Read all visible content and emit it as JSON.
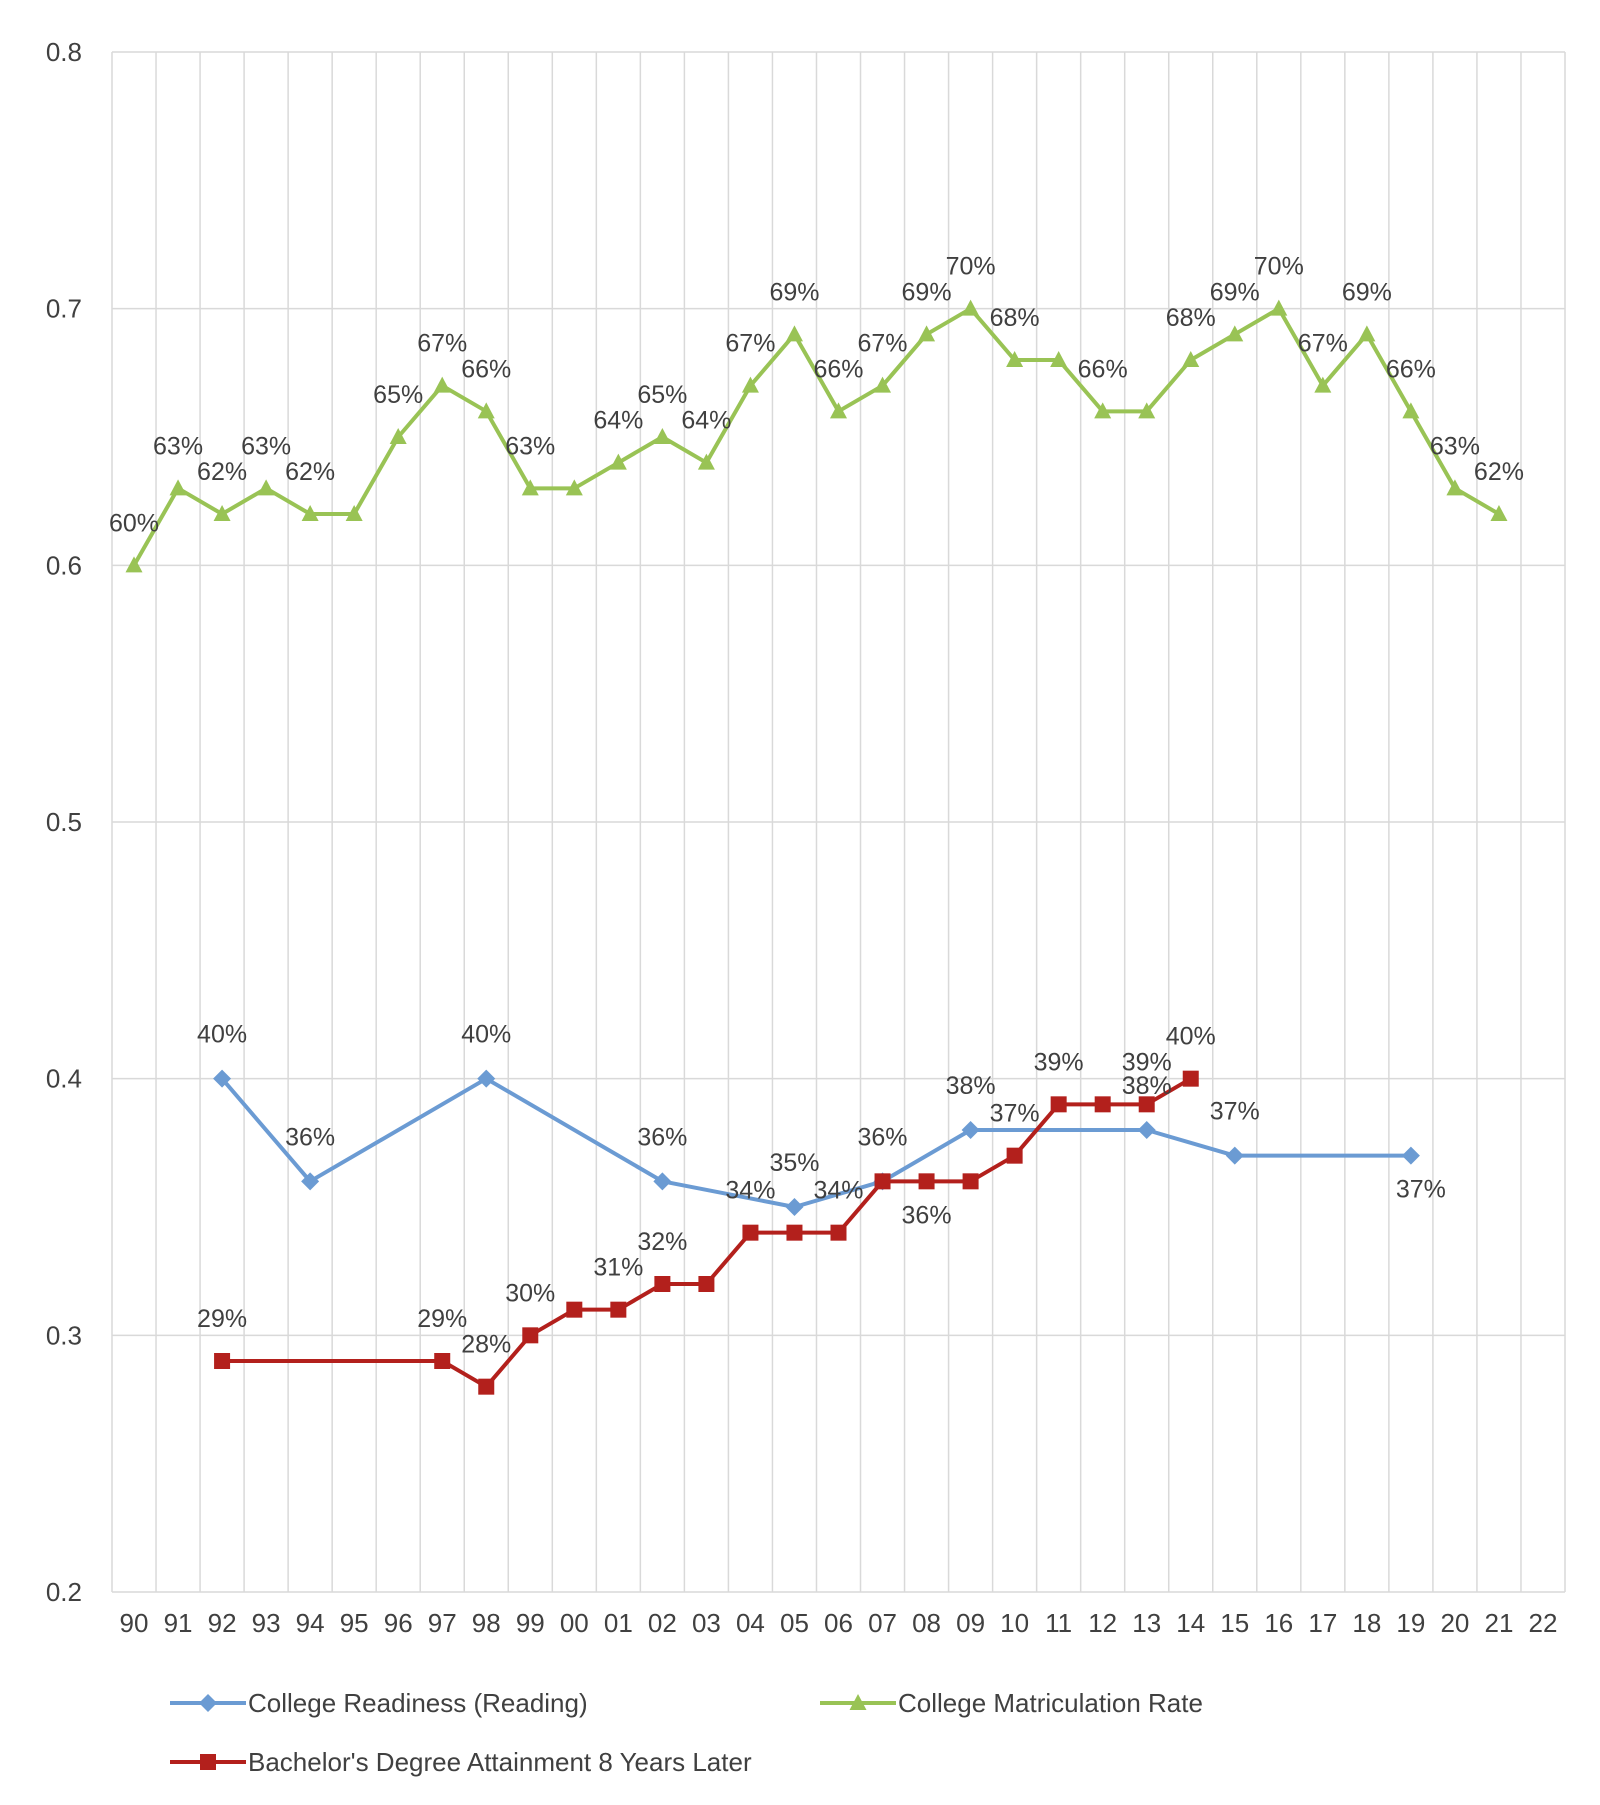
{
  "chart_data": {
    "type": "line",
    "title": "",
    "xlabel": "",
    "ylabel": "",
    "ylim": [
      0.2,
      0.8
    ],
    "yticks": [
      "0.2",
      "0.3",
      "0.4",
      "0.5",
      "0.6",
      "0.7",
      "0.8"
    ],
    "ytick_values": [
      0.2,
      0.3,
      0.4,
      0.5,
      0.6,
      0.7,
      0.8
    ],
    "categories": [
      "90",
      "91",
      "92",
      "93",
      "94",
      "95",
      "96",
      "97",
      "98",
      "99",
      "00",
      "01",
      "02",
      "03",
      "04",
      "05",
      "06",
      "07",
      "08",
      "09",
      "10",
      "11",
      "12",
      "13",
      "14",
      "15",
      "16",
      "17",
      "18",
      "19",
      "20",
      "21",
      "22"
    ],
    "grid": true,
    "legend_position": "bottom",
    "series": [
      {
        "name": "College Readiness (Reading)",
        "color": "#6b9bd3",
        "marker": "diamond",
        "values": [
          null,
          null,
          0.4,
          null,
          0.36,
          null,
          null,
          null,
          0.4,
          null,
          null,
          null,
          0.36,
          null,
          null,
          0.35,
          null,
          0.36,
          null,
          0.38,
          null,
          null,
          null,
          0.38,
          null,
          0.37,
          null,
          null,
          null,
          0.37,
          null,
          null,
          null
        ],
        "labels": [
          null,
          null,
          "40%",
          null,
          "36%",
          null,
          null,
          null,
          "40%",
          null,
          null,
          null,
          "36%",
          null,
          null,
          "35%",
          null,
          "36%",
          null,
          "38%",
          null,
          null,
          null,
          "38%",
          null,
          "37%",
          null,
          null,
          null,
          "37%",
          null,
          null,
          null
        ]
      },
      {
        "name": "College Matriculation Rate",
        "color": "#99c355",
        "marker": "triangle",
        "values": [
          0.6,
          0.63,
          0.62,
          0.63,
          0.62,
          0.62,
          0.65,
          0.67,
          0.66,
          0.63,
          0.63,
          0.64,
          0.65,
          0.64,
          0.67,
          0.69,
          0.66,
          0.67,
          0.69,
          0.7,
          0.68,
          0.68,
          0.66,
          0.66,
          0.68,
          0.69,
          0.7,
          0.67,
          0.69,
          0.66,
          0.63,
          0.62,
          null
        ],
        "labels": [
          "60%",
          "63%",
          "62%",
          "63%",
          "62%",
          null,
          "65%",
          "67%",
          "66%",
          "63%",
          null,
          "64%",
          "65%",
          "64%",
          "67%",
          "69%",
          "66%",
          "67%",
          "69%",
          "70%",
          "68%",
          null,
          "66%",
          null,
          "68%",
          "69%",
          "70%",
          "67%",
          "69%",
          "66%",
          "63%",
          "62%",
          null
        ]
      },
      {
        "name": "Bachelor's Degree Attainment 8 Years Later",
        "color": "#b3201c",
        "marker": "square",
        "values": [
          null,
          null,
          0.29,
          null,
          null,
          null,
          null,
          0.29,
          0.28,
          0.3,
          0.31,
          0.31,
          0.32,
          0.32,
          0.34,
          0.34,
          0.34,
          0.36,
          0.36,
          0.36,
          0.37,
          0.39,
          0.39,
          0.39,
          0.4,
          null,
          null,
          null,
          null,
          null,
          null,
          null,
          null
        ],
        "labels": [
          null,
          null,
          "29%",
          null,
          null,
          null,
          null,
          "29%",
          "28%",
          "30%",
          null,
          "31%",
          "32%",
          null,
          "34%",
          null,
          "34%",
          null,
          "36%",
          null,
          "37%",
          "39%",
          null,
          "39%",
          "40%",
          null,
          null,
          null,
          null,
          null,
          null,
          null,
          null
        ]
      }
    ]
  }
}
